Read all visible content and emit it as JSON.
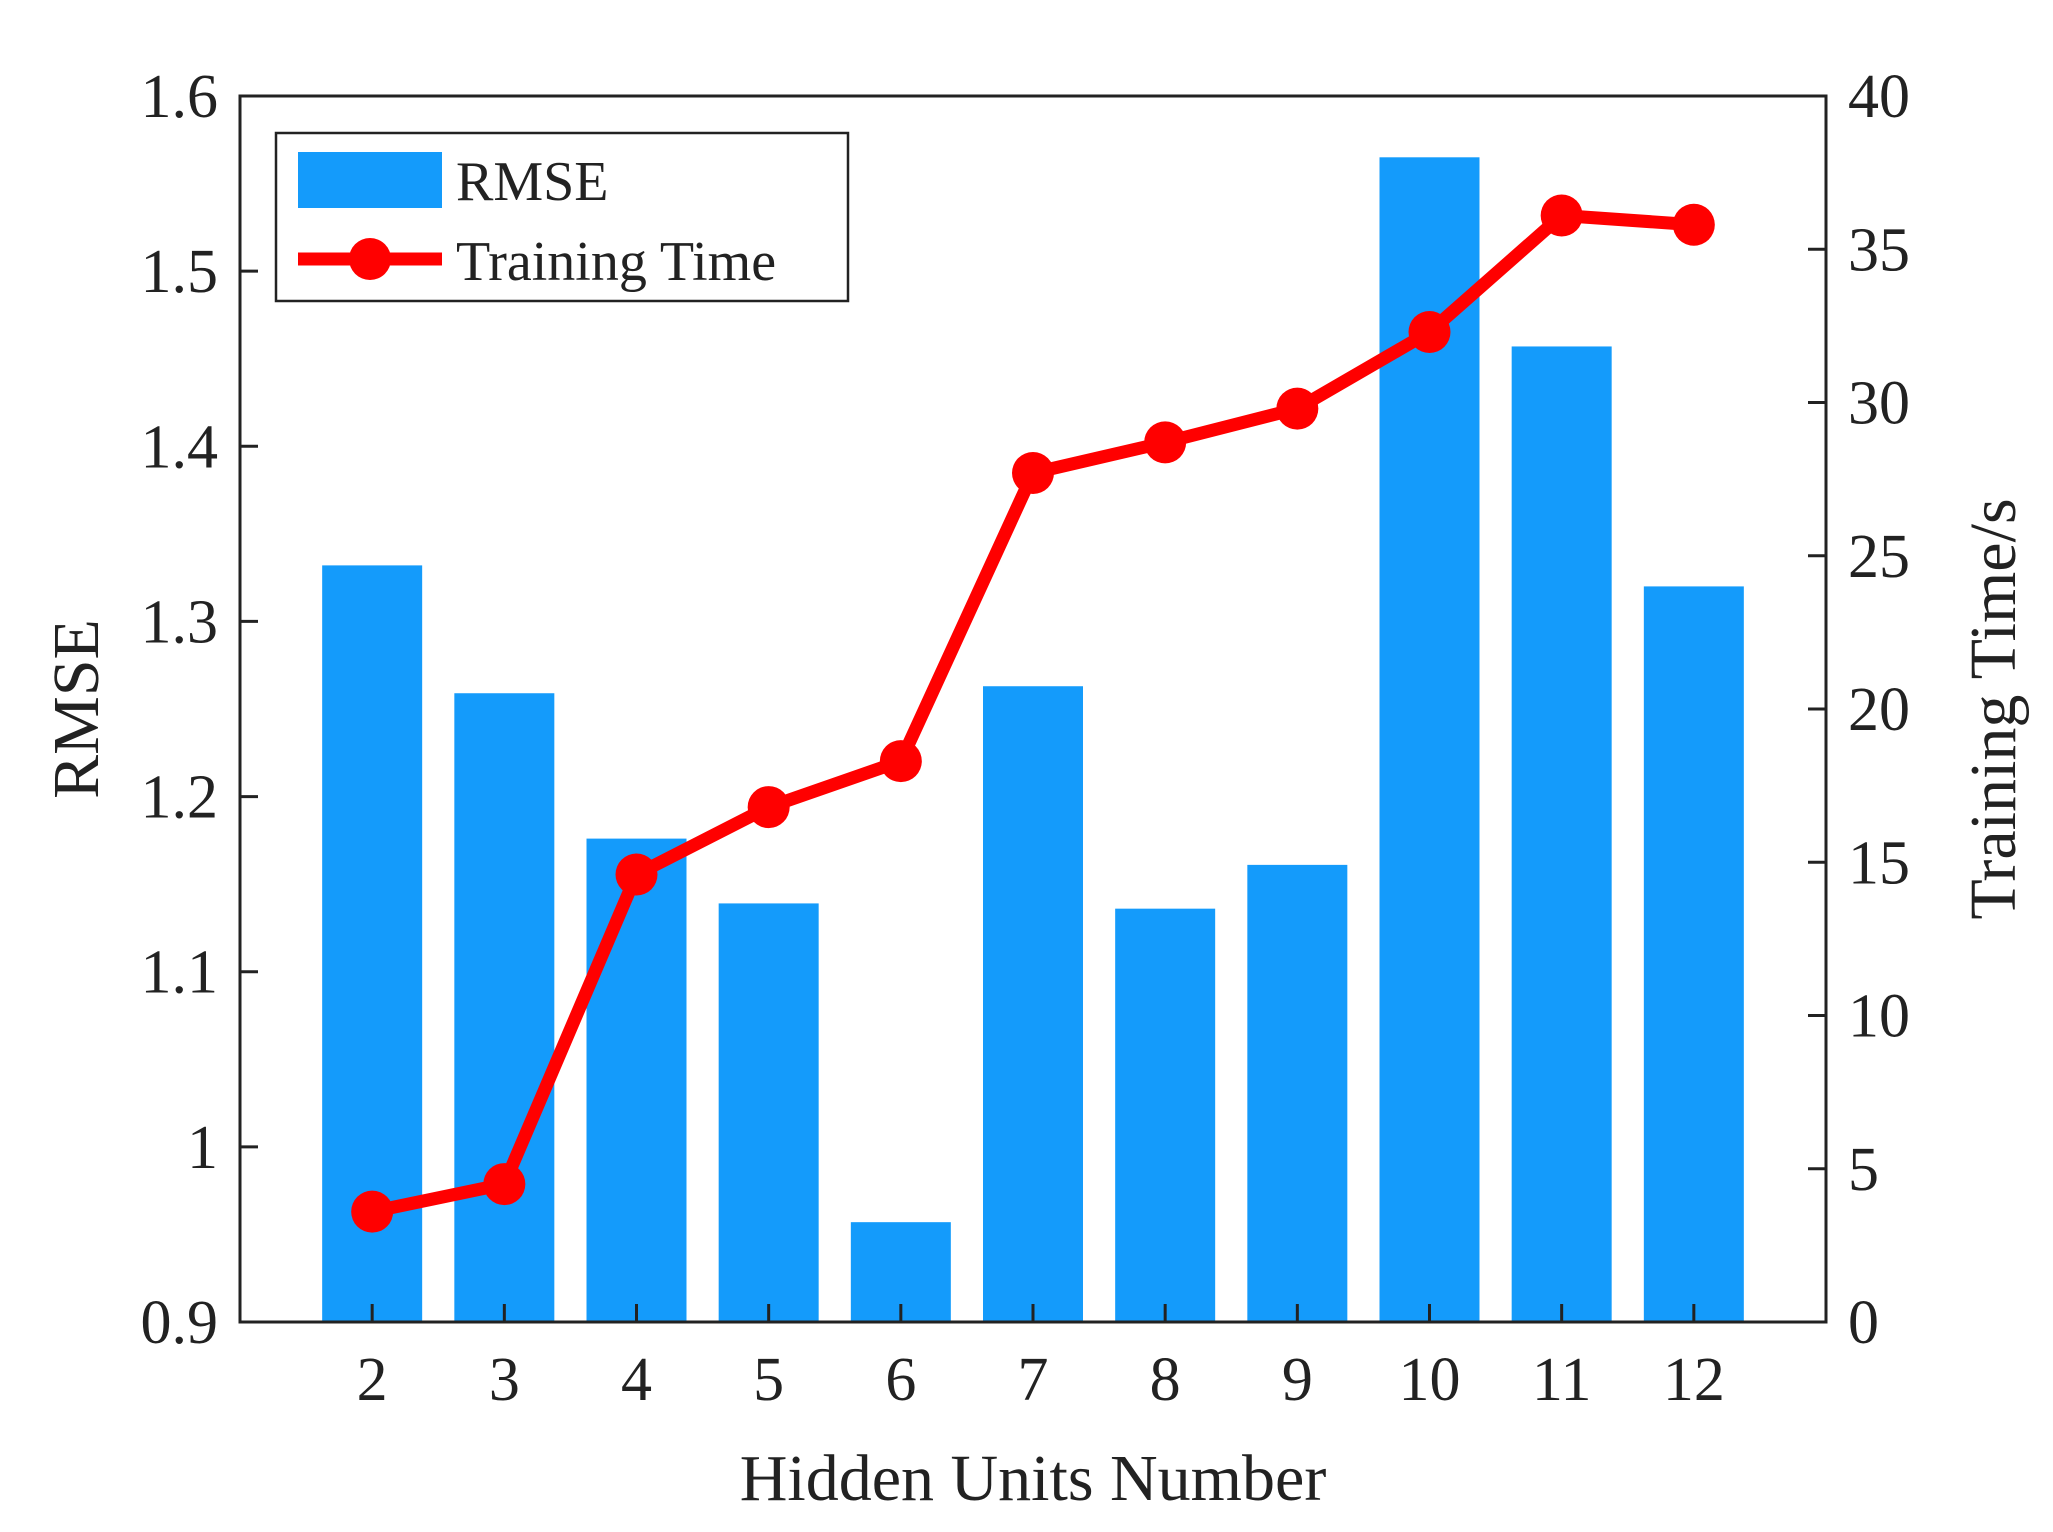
{
  "chart_data": {
    "type": "bar",
    "xlabel": "Hidden Units Number",
    "ylabel": "RMSE",
    "y2label": "Training Time/s",
    "categories": [
      "2",
      "3",
      "4",
      "5",
      "6",
      "7",
      "8",
      "9",
      "10",
      "11",
      "12"
    ],
    "ylim": [
      0.9,
      1.6
    ],
    "y2lim": [
      0,
      40
    ],
    "yticks": [
      "0.9",
      "1",
      "1.1",
      "1.2",
      "1.3",
      "1.4",
      "1.5",
      "1.6"
    ],
    "y2ticks": [
      "0",
      "5",
      "10",
      "15",
      "20",
      "25",
      "30",
      "35",
      "40"
    ],
    "series": [
      {
        "name": "RMSE",
        "type": "bar",
        "axis": "left",
        "color": "#149BFB",
        "values": [
          1.332,
          1.259,
          1.176,
          1.139,
          0.957,
          1.263,
          1.136,
          1.161,
          1.565,
          1.457,
          1.32
        ]
      },
      {
        "name": "Training Time",
        "type": "line",
        "axis": "right",
        "color": "#FF0000",
        "marker": "circle",
        "values": [
          3.6,
          4.5,
          14.6,
          16.8,
          18.3,
          27.7,
          28.7,
          29.8,
          32.3,
          36.1,
          35.8
        ]
      }
    ],
    "legend": {
      "position": "top-left",
      "items": [
        "RMSE",
        "Training Time"
      ]
    },
    "grid": false,
    "box": true
  }
}
